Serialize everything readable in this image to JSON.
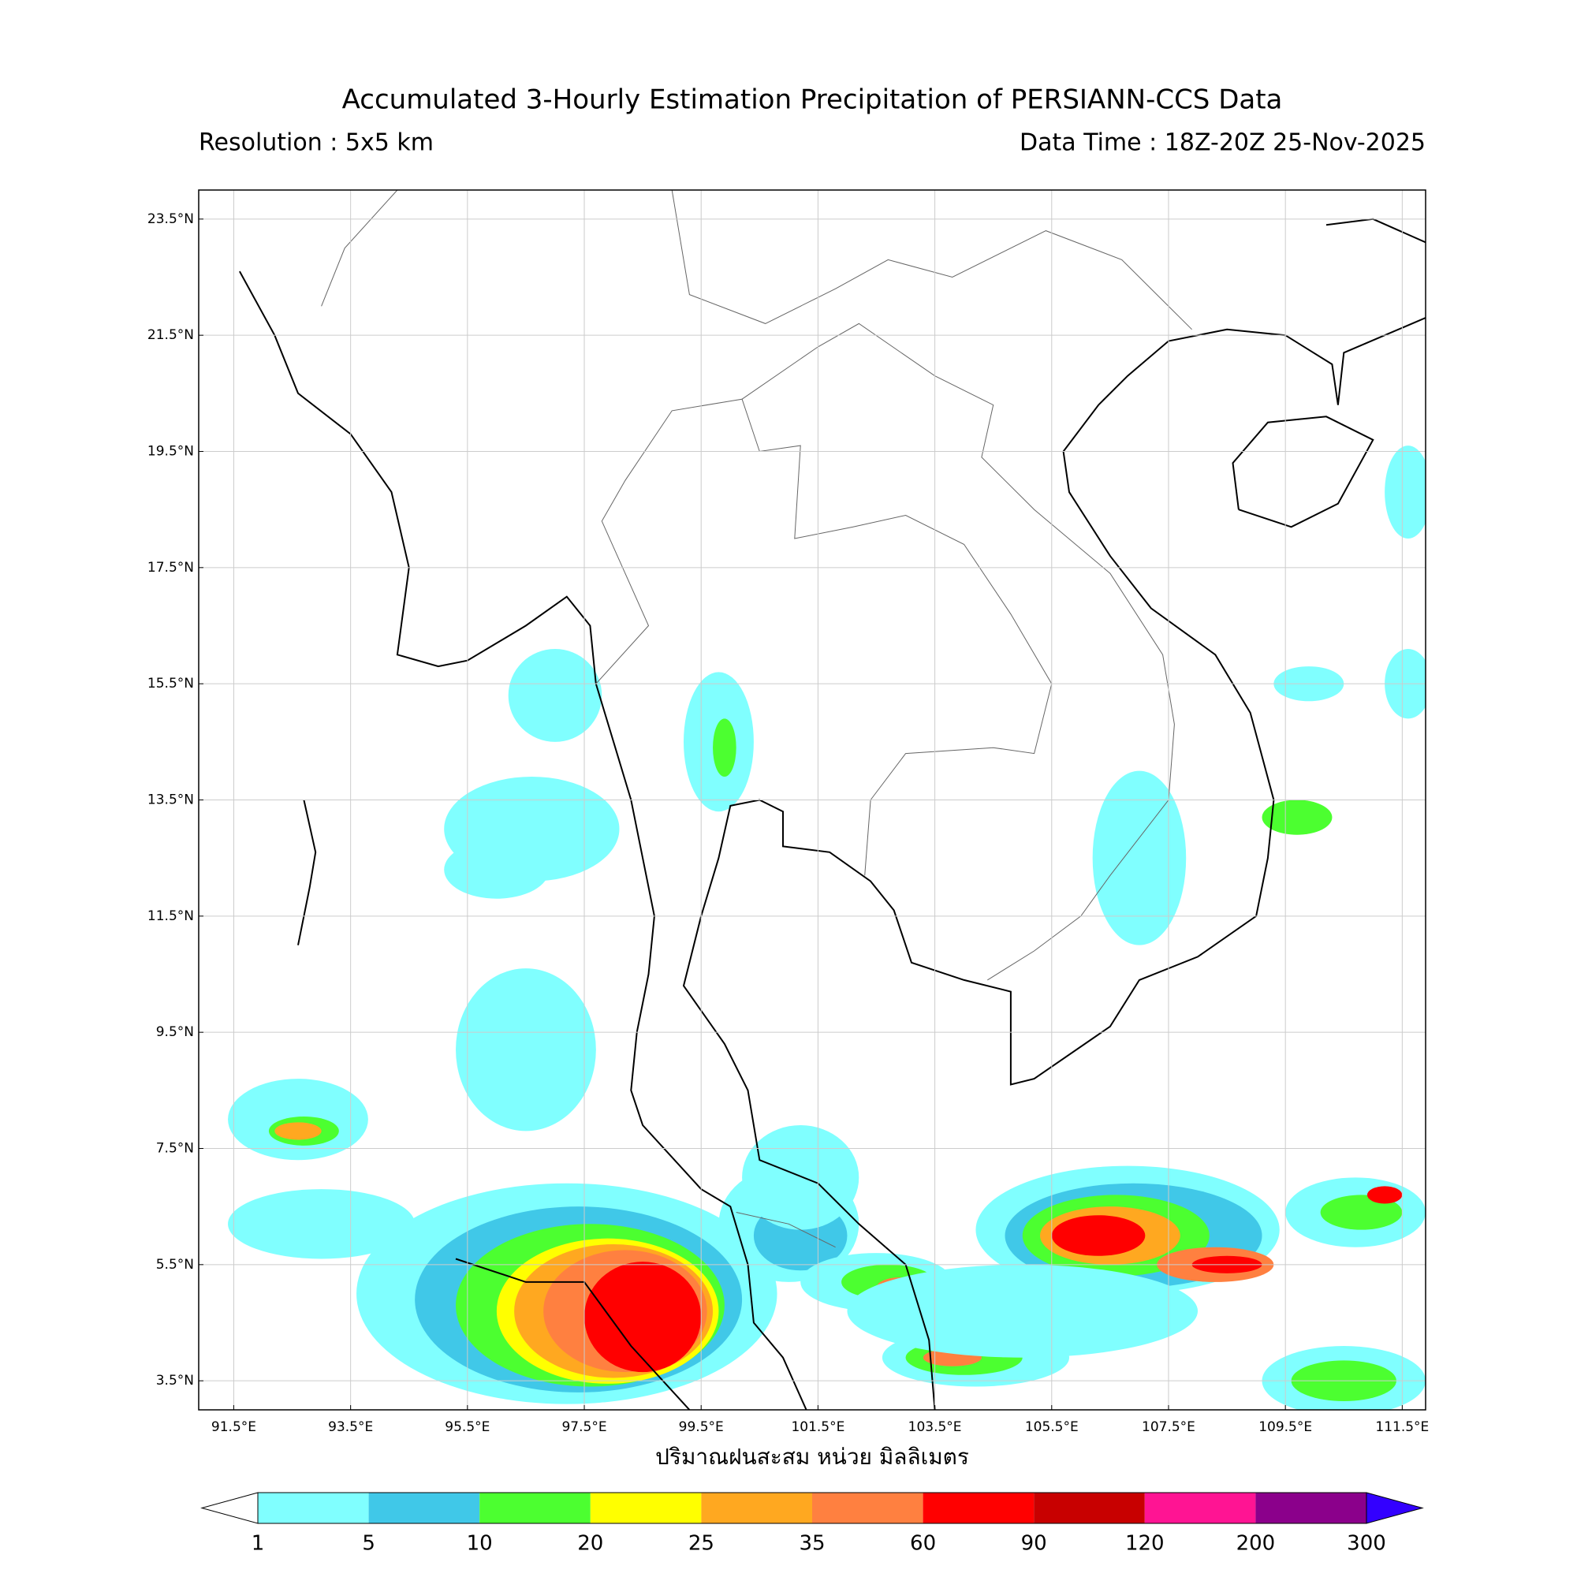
{
  "title": "Accumulated 3-Hourly Estimation Precipitation of PERSIANN-CCS Data",
  "resolution": "Resolution : 5x5 km",
  "data_time": "Data Time : 18Z-20Z 25-Nov-2025",
  "map": {
    "xlim": [
      90.9,
      111.9
    ],
    "ylim": [
      3.0,
      24.0
    ],
    "xticks": [
      {
        "value": 91.5,
        "label": "91.5°E"
      },
      {
        "value": 93.5,
        "label": "93.5°E"
      },
      {
        "value": 95.5,
        "label": "95.5°E"
      },
      {
        "value": 97.5,
        "label": "97.5°E"
      },
      {
        "value": 99.5,
        "label": "99.5°E"
      },
      {
        "value": 101.5,
        "label": "101.5°E"
      },
      {
        "value": 103.5,
        "label": "103.5°E"
      },
      {
        "value": 105.5,
        "label": "105.5°E"
      },
      {
        "value": 107.5,
        "label": "107.5°E"
      },
      {
        "value": 109.5,
        "label": "109.5°E"
      },
      {
        "value": 111.5,
        "label": "111.5°E"
      }
    ],
    "yticks": [
      {
        "value": 3.5,
        "label": "3.5°N"
      },
      {
        "value": 5.5,
        "label": "5.5°N"
      },
      {
        "value": 7.5,
        "label": "7.5°N"
      },
      {
        "value": 9.5,
        "label": "9.5°N"
      },
      {
        "value": 11.5,
        "label": "11.5°N"
      },
      {
        "value": 13.5,
        "label": "13.5°N"
      },
      {
        "value": 15.5,
        "label": "15.5°N"
      },
      {
        "value": 17.5,
        "label": "17.5°N"
      },
      {
        "value": 19.5,
        "label": "19.5°N"
      },
      {
        "value": 21.5,
        "label": "21.5°N"
      },
      {
        "value": 23.5,
        "label": "23.5°N"
      }
    ],
    "grid": true,
    "xlabel": "ปริมาณฝนสะสม หน่วย มิลลิเมตร"
  },
  "colorbar": {
    "levels": [
      1,
      5,
      10,
      20,
      25,
      35,
      60,
      90,
      120,
      200,
      300
    ],
    "colors": [
      "#80ffff",
      "#40c8e8",
      "#4cff30",
      "#ffff00",
      "#ffa820",
      "#ff8040",
      "#ff0000",
      "#c80000",
      "#ff1493",
      "#8b008b",
      "#3300ff"
    ],
    "under_color": "#ffffff"
  }
}
